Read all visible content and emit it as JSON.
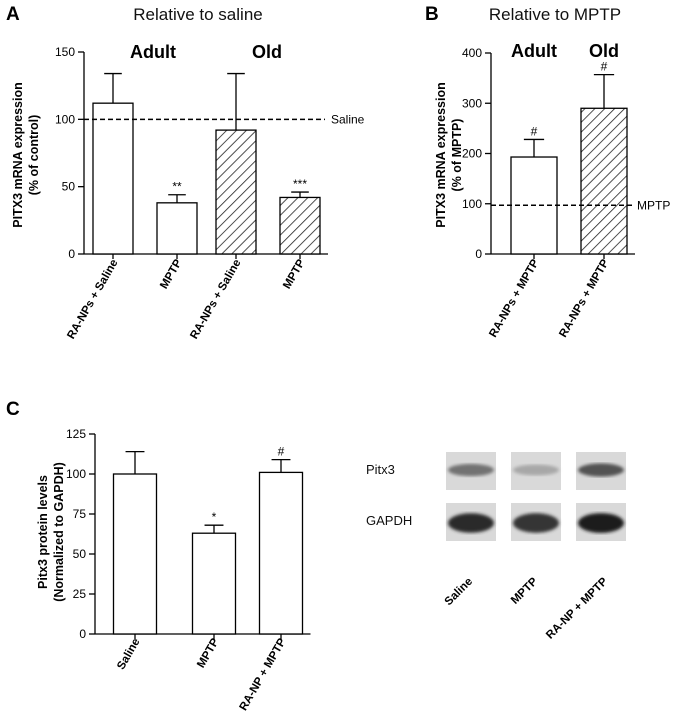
{
  "chart_data": [
    {
      "panel": "A",
      "type": "bar",
      "title": "Relative to saline",
      "ylabel_line1": "PITX3 mRNA expression",
      "ylabel_line2": "(% of control)",
      "ylim": [
        0,
        150
      ],
      "yticks": [
        0,
        50,
        100,
        150
      ],
      "group_labels": [
        "Adult",
        "Old"
      ],
      "categories": [
        "RA-NPs + Saline",
        "MPTP",
        "RA-NPs + Saline",
        "MPTP"
      ],
      "values": [
        112,
        38,
        92,
        42
      ],
      "errors": [
        22,
        6,
        42,
        4
      ],
      "hatched": [
        false,
        false,
        true,
        true
      ],
      "significance": [
        "",
        "**",
        "",
        "***"
      ],
      "reference": {
        "value": 100,
        "label": "Saline"
      }
    },
    {
      "panel": "B",
      "type": "bar",
      "title": "Relative to MPTP",
      "ylabel_line1": "PITX3 mRNA expression",
      "ylabel_line2": "(% of MPTP)",
      "ylim": [
        0,
        400
      ],
      "yticks": [
        0,
        100,
        200,
        300,
        400
      ],
      "group_labels": [
        "Adult",
        "Old"
      ],
      "categories": [
        "RA-NPs + MPTP",
        "RA-NPs + MPTP"
      ],
      "values": [
        193,
        290
      ],
      "errors": [
        35,
        67
      ],
      "hatched": [
        false,
        true
      ],
      "significance": [
        "#",
        "#"
      ],
      "reference": {
        "value": 97,
        "label": "MPTP"
      }
    },
    {
      "panel": "C",
      "type": "bar",
      "title": "",
      "ylabel_line1": "Pitx3 protein levels",
      "ylabel_line2": "(Normalized to GAPDH)",
      "ylim": [
        0,
        125
      ],
      "yticks": [
        0,
        25,
        50,
        75,
        100,
        125
      ],
      "categories": [
        "Saline",
        "MPTP",
        "RA-NP + MPTP"
      ],
      "values": [
        100,
        63,
        101
      ],
      "errors": [
        14,
        5,
        8
      ],
      "hatched": [
        false,
        false,
        false
      ],
      "significance": [
        "",
        "*",
        "#"
      ]
    }
  ],
  "blot": {
    "row_labels": [
      "Pitx3",
      "GAPDH"
    ],
    "lane_labels": [
      "Saline",
      "MPTP",
      "RA-NP + MPTP"
    ],
    "band_intensity": [
      [
        0.55,
        0.3,
        0.7
      ],
      [
        0.9,
        0.85,
        0.95
      ]
    ]
  }
}
